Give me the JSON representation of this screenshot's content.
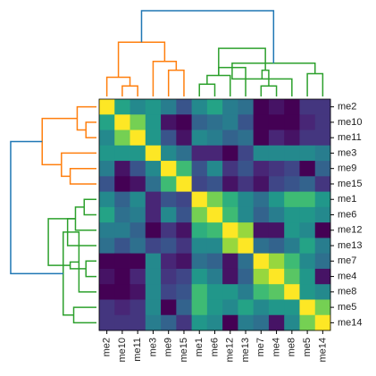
{
  "chart_data": {
    "type": "heatmap",
    "colormap": "viridis",
    "row_labels": [
      "me2",
      "me10",
      "me11",
      "me3",
      "me9",
      "me15",
      "me1",
      "me6",
      "me12",
      "me13",
      "me7",
      "me4",
      "me8",
      "me5",
      "me14"
    ],
    "col_labels": [
      "me2",
      "me10",
      "me11",
      "me3",
      "me9",
      "me15",
      "me1",
      "me6",
      "me12",
      "me13",
      "me7",
      "me4",
      "me8",
      "me5",
      "me14"
    ],
    "z": [
      [
        1,
        0.6,
        0.5,
        0.55,
        0.45,
        0.3,
        0.5,
        0.6,
        0.45,
        0.4,
        0.05,
        0.1,
        0.05,
        0.2,
        0.2
      ],
      [
        0.6,
        1,
        0.8,
        0.55,
        0.1,
        0.05,
        0.35,
        0.4,
        0.45,
        0.3,
        0.05,
        0.05,
        0.05,
        0.15,
        0.2
      ],
      [
        0.5,
        0.8,
        1,
        0.55,
        0.3,
        0.1,
        0.5,
        0.45,
        0.35,
        0.4,
        0.05,
        0.15,
        0.1,
        0.2,
        0.2
      ],
      [
        0.55,
        0.55,
        0.55,
        1,
        0.5,
        0.4,
        0.15,
        0.15,
        0.05,
        0.25,
        0.5,
        0.5,
        0.5,
        0.5,
        0.45
      ],
      [
        0.45,
        0.1,
        0.3,
        0.5,
        1,
        0.7,
        0.3,
        0.5,
        0.2,
        0.3,
        0.15,
        0.2,
        0.25,
        0.05,
        0.35
      ],
      [
        0.3,
        0.05,
        0.1,
        0.4,
        0.7,
        1,
        0.25,
        0.3,
        0.1,
        0.2,
        0.1,
        0.25,
        0.3,
        0.35,
        0.2
      ],
      [
        0.5,
        0.35,
        0.5,
        0.15,
        0.3,
        0.25,
        1,
        0.8,
        0.65,
        0.5,
        0.4,
        0.55,
        0.7,
        0.7,
        0.55
      ],
      [
        0.6,
        0.4,
        0.45,
        0.15,
        0.5,
        0.3,
        0.8,
        1,
        0.7,
        0.5,
        0.35,
        0.45,
        0.55,
        0.55,
        0.5
      ],
      [
        0.45,
        0.45,
        0.35,
        0.05,
        0.2,
        0.1,
        0.65,
        0.7,
        1,
        0.85,
        0.1,
        0.1,
        0.55,
        0.5,
        0.05
      ],
      [
        0.4,
        0.3,
        0.4,
        0.25,
        0.3,
        0.2,
        0.5,
        0.5,
        0.85,
        1,
        0.4,
        0.35,
        0.45,
        0.6,
        0.45
      ],
      [
        0.05,
        0.05,
        0.05,
        0.5,
        0.15,
        0.1,
        0.4,
        0.35,
        0.1,
        0.4,
        1,
        0.85,
        0.7,
        0.5,
        0.4
      ],
      [
        0.1,
        0.05,
        0.15,
        0.5,
        0.2,
        0.25,
        0.55,
        0.45,
        0.1,
        0.35,
        0.85,
        1,
        0.75,
        0.55,
        0.1
      ],
      [
        0.05,
        0.05,
        0.1,
        0.5,
        0.25,
        0.3,
        0.7,
        0.55,
        0.55,
        0.45,
        0.7,
        0.75,
        1,
        0.55,
        0.5
      ],
      [
        0.2,
        0.15,
        0.2,
        0.5,
        0.05,
        0.35,
        0.7,
        0.55,
        0.5,
        0.6,
        0.5,
        0.55,
        0.55,
        1,
        0.8
      ],
      [
        0.2,
        0.2,
        0.2,
        0.45,
        0.35,
        0.2,
        0.55,
        0.5,
        0.05,
        0.45,
        0.4,
        0.1,
        0.5,
        0.8,
        1
      ]
    ]
  }
}
